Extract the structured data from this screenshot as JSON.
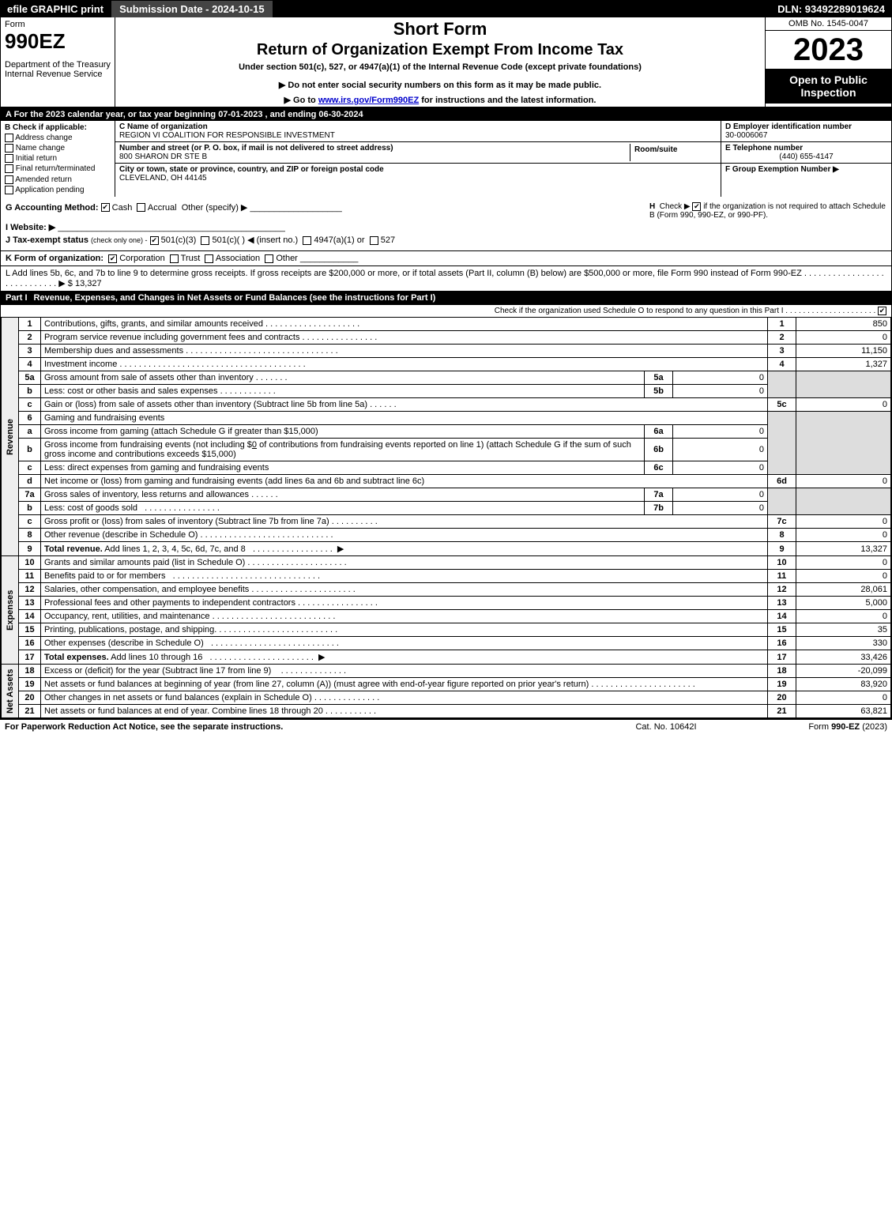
{
  "topbar": {
    "efile": "efile GRAPHIC print",
    "submission_label": "Submission Date - 2024-10-15",
    "dln": "DLN: 93492289019624"
  },
  "header": {
    "form_word": "Form",
    "form_num": "990EZ",
    "dept": "Department of the Treasury\nInternal Revenue Service",
    "short": "Short Form",
    "main_title": "Return of Organization Exempt From Income Tax",
    "sub1": "Under section 501(c), 527, or 4947(a)(1) of the Internal Revenue Code (except private foundations)",
    "sub2": "▶ Do not enter social security numbers on this form as it may be made public.",
    "sub3_pre": "▶ Go to ",
    "sub3_link": "www.irs.gov/Form990EZ",
    "sub3_post": " for instructions and the latest information.",
    "omb": "OMB No. 1545-0047",
    "year": "2023",
    "black": "Open to Public Inspection"
  },
  "row_a": "A  For the 2023 calendar year, or tax year beginning 07-01-2023 , and ending 06-30-2024",
  "col_b": {
    "title": "B",
    "subtitle": "Check if applicable:",
    "items": [
      "Address change",
      "Name change",
      "Initial return",
      "Final return/terminated",
      "Amended return",
      "Application pending"
    ]
  },
  "col_c": {
    "c_label": "C Name of organization",
    "c_value": "REGION VI COALITION FOR RESPONSIBLE INVESTMENT",
    "street_label": "Number and street (or P. O. box, if mail is not delivered to street address)",
    "street_value": "800 SHARON DR STE B",
    "room_label": "Room/suite",
    "city_label": "City or town, state or province, country, and ZIP or foreign postal code",
    "city_value": "CLEVELAND, OH  44145"
  },
  "col_def": {
    "d_label": "D Employer identification number",
    "d_value": "30-0006067",
    "e_label": "E Telephone number",
    "e_value": "(440) 655-4147",
    "f_label": "F Group Exemption Number  ▶"
  },
  "g_line": {
    "label": "G Accounting Method:",
    "cash": "Cash",
    "accrual": "Accrual",
    "other": "Other (specify) ▶"
  },
  "h_line": {
    "label": "H",
    "text1": "Check ▶",
    "text2": "if the organization is not required to attach Schedule B (Form 990, 990-EZ, or 990-PF)."
  },
  "i_line": "I Website: ▶",
  "j_line": {
    "pre": "J Tax-exempt status",
    "sub": "(check only one) -",
    "opts": "501(c)(3)    501(c)(  ) ◀ (insert no.)    4947(a)(1) or    527"
  },
  "k_line": {
    "pre": "K Form of organization:",
    "opts": "Corporation    Trust    Association    Other"
  },
  "l_line": {
    "text": "L Add lines 5b, 6c, and 7b to line 9 to determine gross receipts. If gross receipts are $200,000 or more, or if total assets (Part II, column (B) below) are $500,000 or more, file Form 990 instead of Form 990-EZ",
    "arrow": "▶ $",
    "value": "13,327"
  },
  "part1": {
    "label": "Part I",
    "title": "Revenue, Expenses, and Changes in Net Assets or Fund Balances (see the instructions for Part I)",
    "check": "Check if the organization used Schedule O to respond to any question in this Part I"
  },
  "section_labels": {
    "revenue": "Revenue",
    "expenses": "Expenses",
    "netassets": "Net Assets"
  },
  "lines": {
    "1": {
      "text": "Contributions, gifts, grants, and similar amounts received",
      "num": "1",
      "val": "850"
    },
    "2": {
      "text": "Program service revenue including government fees and contracts",
      "num": "2",
      "val": "0"
    },
    "3": {
      "text": "Membership dues and assessments",
      "num": "3",
      "val": "11,150"
    },
    "4": {
      "text": "Investment income",
      "num": "4",
      "val": "1,327"
    },
    "5a": {
      "text": "Gross amount from sale of assets other than inventory",
      "sub": "5a",
      "subval": "0"
    },
    "5b": {
      "text": "Less: cost or other basis and sales expenses",
      "sub": "5b",
      "subval": "0"
    },
    "5c": {
      "text": "Gain or (loss) from sale of assets other than inventory (Subtract line 5b from line 5a)",
      "num": "5c",
      "val": "0"
    },
    "6": {
      "text": "Gaming and fundraising events"
    },
    "6a": {
      "text": "Gross income from gaming (attach Schedule G if greater than $15,000)",
      "sub": "6a",
      "subval": "0"
    },
    "6b": {
      "text_pre": "Gross income from fundraising events (not including $",
      "text_mid": "0",
      "text_post": " of contributions from fundraising events reported on line 1) (attach Schedule G if the sum of such gross income and contributions exceeds $15,000)",
      "sub": "6b",
      "subval": "0"
    },
    "6c": {
      "text": "Less: direct expenses from gaming and fundraising events",
      "sub": "6c",
      "subval": "0"
    },
    "6d": {
      "text": "Net income or (loss) from gaming and fundraising events (add lines 6a and 6b and subtract line 6c)",
      "num": "6d",
      "val": "0"
    },
    "7a": {
      "text": "Gross sales of inventory, less returns and allowances",
      "sub": "7a",
      "subval": "0"
    },
    "7b": {
      "text": "Less: cost of goods sold",
      "sub": "7b",
      "subval": "0"
    },
    "7c": {
      "text": "Gross profit or (loss) from sales of inventory (Subtract line 7b from line 7a)",
      "num": "7c",
      "val": "0"
    },
    "8": {
      "text": "Other revenue (describe in Schedule O)",
      "num": "8",
      "val": "0"
    },
    "9": {
      "text": "Total revenue. Add lines 1, 2, 3, 4, 5c, 6d, 7c, and 8",
      "num": "9",
      "val": "13,327",
      "bold": true
    },
    "10": {
      "text": "Grants and similar amounts paid (list in Schedule O)",
      "num": "10",
      "val": "0"
    },
    "11": {
      "text": "Benefits paid to or for members",
      "num": "11",
      "val": "0"
    },
    "12": {
      "text": "Salaries, other compensation, and employee benefits",
      "num": "12",
      "val": "28,061"
    },
    "13": {
      "text": "Professional fees and other payments to independent contractors",
      "num": "13",
      "val": "5,000"
    },
    "14": {
      "text": "Occupancy, rent, utilities, and maintenance",
      "num": "14",
      "val": "0"
    },
    "15": {
      "text": "Printing, publications, postage, and shipping.",
      "num": "15",
      "val": "35"
    },
    "16": {
      "text": "Other expenses (describe in Schedule O)",
      "num": "16",
      "val": "330"
    },
    "17": {
      "text": "Total expenses. Add lines 10 through 16",
      "num": "17",
      "val": "33,426",
      "bold": true
    },
    "18": {
      "text": "Excess or (deficit) for the year (Subtract line 17 from line 9)",
      "num": "18",
      "val": "-20,099"
    },
    "19": {
      "text": "Net assets or fund balances at beginning of year (from line 27, column (A)) (must agree with end-of-year figure reported on prior year's return)",
      "num": "19",
      "val": "83,920"
    },
    "20": {
      "text": "Other changes in net assets or fund balances (explain in Schedule O)",
      "num": "20",
      "val": "0"
    },
    "21": {
      "text": "Net assets or fund balances at end of year. Combine lines 18 through 20",
      "num": "21",
      "val": "63,821"
    }
  },
  "footer": {
    "left": "For Paperwork Reduction Act Notice, see the separate instructions.",
    "mid": "Cat. No. 10642I",
    "right_pre": "Form ",
    "right_bold": "990-EZ",
    "right_post": " (2023)"
  }
}
